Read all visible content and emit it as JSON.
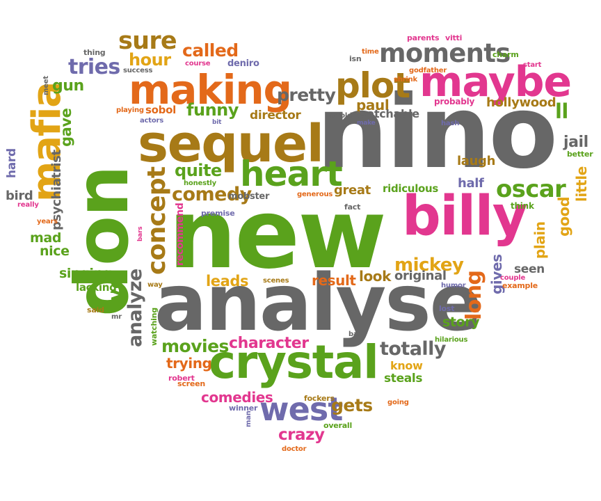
{
  "palette": {
    "green": "#5aa21c",
    "grey": "#676767",
    "pink": "#e2378f",
    "orange": "#e3691a",
    "brown": "#a77a17",
    "purple": "#6f6bac",
    "yellow": "#e2a415"
  },
  "words": [
    {
      "text": "nino",
      "color": "grey"
    },
    {
      "text": "new",
      "color": "green"
    },
    {
      "text": "analyse",
      "color": "grey"
    },
    {
      "text": "don",
      "color": "green"
    },
    {
      "text": "billy",
      "color": "pink"
    },
    {
      "text": "sequel",
      "color": "brown"
    },
    {
      "text": "crystal",
      "color": "green"
    },
    {
      "text": "making",
      "color": "orange"
    },
    {
      "text": "maybe",
      "color": "pink"
    },
    {
      "text": "mafia",
      "color": "yellow"
    },
    {
      "text": "heart",
      "color": "green"
    },
    {
      "text": "plot",
      "color": "brown"
    },
    {
      "text": "moments",
      "color": "grey"
    },
    {
      "text": "west",
      "color": "purple"
    },
    {
      "text": "concept",
      "color": "brown"
    },
    {
      "text": "oscar",
      "color": "green"
    },
    {
      "text": "sure",
      "color": "brown"
    },
    {
      "text": "long",
      "color": "orange"
    },
    {
      "text": "analyze",
      "color": "grey"
    },
    {
      "text": "character",
      "color": "pink"
    },
    {
      "text": "totally",
      "color": "grey"
    },
    {
      "text": "comedy",
      "color": "brown"
    },
    {
      "text": "movies",
      "color": "green"
    },
    {
      "text": "called",
      "color": "orange"
    },
    {
      "text": "pretty",
      "color": "grey"
    },
    {
      "text": "mickey",
      "color": "yellow"
    },
    {
      "text": "tries",
      "color": "purple"
    },
    {
      "text": "hour",
      "color": "yellow"
    },
    {
      "text": "funny",
      "color": "green"
    },
    {
      "text": "quite",
      "color": "green"
    },
    {
      "text": "gets",
      "color": "brown"
    },
    {
      "text": "crazy",
      "color": "pink"
    },
    {
      "text": "comedies",
      "color": "pink"
    },
    {
      "text": "trying",
      "color": "orange"
    },
    {
      "text": "leads",
      "color": "yellow"
    },
    {
      "text": "result",
      "color": "orange"
    },
    {
      "text": "look",
      "color": "brown"
    },
    {
      "text": "original",
      "color": "grey"
    },
    {
      "text": "story",
      "color": "green"
    },
    {
      "text": "know",
      "color": "yellow"
    },
    {
      "text": "steals",
      "color": "green"
    },
    {
      "text": "gives",
      "color": "purple"
    },
    {
      "text": "ve",
      "color": "green"
    },
    {
      "text": "singing",
      "color": "green"
    },
    {
      "text": "gun",
      "color": "green"
    },
    {
      "text": "psychiatrist",
      "color": "grey"
    },
    {
      "text": "hollywood",
      "color": "brown"
    },
    {
      "text": "ll",
      "color": "green"
    },
    {
      "text": "jail",
      "color": "grey"
    },
    {
      "text": "laugh",
      "color": "brown"
    },
    {
      "text": "half",
      "color": "purple"
    },
    {
      "text": "little",
      "color": "yellow"
    },
    {
      "text": "good",
      "color": "yellow"
    },
    {
      "text": "plain",
      "color": "yellow"
    },
    {
      "text": "seen",
      "color": "grey"
    },
    {
      "text": "paul",
      "color": "brown"
    },
    {
      "text": "director",
      "color": "brown"
    },
    {
      "text": "watchable",
      "color": "grey"
    },
    {
      "text": "great",
      "color": "brown"
    },
    {
      "text": "ridiculous",
      "color": "green"
    },
    {
      "text": "sobol",
      "color": "orange"
    },
    {
      "text": "deniro",
      "color": "purple"
    },
    {
      "text": "gave",
      "color": "green"
    },
    {
      "text": "hard",
      "color": "purple"
    },
    {
      "text": "bird",
      "color": "grey"
    },
    {
      "text": "mad",
      "color": "green"
    },
    {
      "text": "nice",
      "color": "green"
    },
    {
      "text": "lacking",
      "color": "green"
    },
    {
      "text": "recommend",
      "color": "pink"
    },
    {
      "text": "mobster",
      "color": "grey"
    },
    {
      "text": "honestly",
      "color": "green"
    },
    {
      "text": "playing",
      "color": "orange"
    },
    {
      "text": "actors",
      "color": "purple"
    },
    {
      "text": "bit",
      "color": "purple"
    },
    {
      "text": "harold",
      "color": "grey"
    },
    {
      "text": "make",
      "color": "purple"
    },
    {
      "text": "probably",
      "color": "pink"
    },
    {
      "text": "hash",
      "color": "purple"
    },
    {
      "text": "better",
      "color": "green"
    },
    {
      "text": "think",
      "color": "green"
    },
    {
      "text": "fact",
      "color": "grey"
    },
    {
      "text": "generous",
      "color": "orange"
    },
    {
      "text": "premise",
      "color": "purple"
    },
    {
      "text": "bars",
      "color": "pink"
    },
    {
      "text": "way",
      "color": "brown"
    },
    {
      "text": "scenes",
      "color": "brown"
    },
    {
      "text": "humor",
      "color": "purple"
    },
    {
      "text": "example",
      "color": "orange"
    },
    {
      "text": "couple",
      "color": "pink"
    },
    {
      "text": "lost",
      "color": "purple"
    },
    {
      "text": "hilarious",
      "color": "green"
    },
    {
      "text": "bad",
      "color": "grey"
    },
    {
      "text": "going",
      "color": "orange"
    },
    {
      "text": "robert",
      "color": "pink"
    },
    {
      "text": "screen",
      "color": "orange"
    },
    {
      "text": "fockers",
      "color": "brown"
    },
    {
      "text": "winner",
      "color": "purple"
    },
    {
      "text": "overall",
      "color": "green"
    },
    {
      "text": "doctor",
      "color": "orange"
    },
    {
      "text": "man",
      "color": "purple"
    },
    {
      "text": "watching",
      "color": "green"
    },
    {
      "text": "mr",
      "color": "grey"
    },
    {
      "text": "said",
      "color": "brown"
    },
    {
      "text": "years",
      "color": "orange"
    },
    {
      "text": "really",
      "color": "pink"
    },
    {
      "text": "meet",
      "color": "grey"
    },
    {
      "text": "thing",
      "color": "grey"
    },
    {
      "text": "success",
      "color": "grey"
    },
    {
      "text": "course",
      "color": "pink"
    },
    {
      "text": "parents",
      "color": "pink"
    },
    {
      "text": "vitti",
      "color": "pink"
    },
    {
      "text": "isn",
      "color": "grey"
    },
    {
      "text": "time",
      "color": "orange"
    },
    {
      "text": "charm",
      "color": "green"
    },
    {
      "text": "start",
      "color": "pink"
    },
    {
      "text": "godfather",
      "color": "orange"
    },
    {
      "text": "shrink",
      "color": "orange"
    }
  ]
}
